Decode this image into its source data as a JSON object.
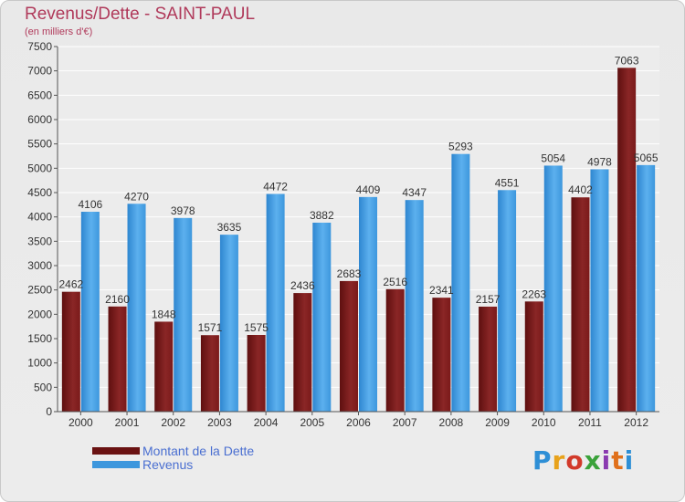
{
  "header": {
    "title": "Revenus/Dette - SAINT-PAUL",
    "subtitle": "(en milliers d'€)"
  },
  "legend": {
    "items": [
      {
        "label": "Montant de la Dette",
        "color": "#7a1a1a"
      },
      {
        "label": "Revenus",
        "color": "#3d97dd"
      }
    ]
  },
  "logo": {
    "text": "Proxiti"
  },
  "colors": {
    "debt": "#7a1a1a",
    "debt_light": "#9a3030",
    "revenue": "#3d97dd",
    "revenue_light": "#5cb0ee",
    "title": "#b03a5b",
    "legend_text": "#4a6fd1"
  },
  "chart_data": {
    "type": "bar",
    "title": "Revenus/Dette - SAINT-PAUL",
    "subtitle": "(en milliers d'€)",
    "categories": [
      "2000",
      "2001",
      "2002",
      "2003",
      "2004",
      "2005",
      "2006",
      "2007",
      "2008",
      "2009",
      "2010",
      "2011",
      "2012"
    ],
    "series": [
      {
        "name": "Montant de la Dette",
        "values": [
          2462,
          2160,
          1848,
          1571,
          1575,
          2436,
          2683,
          2516,
          2341,
          2157,
          2263,
          4402,
          7063
        ]
      },
      {
        "name": "Revenus",
        "values": [
          4106,
          4270,
          3978,
          3635,
          4472,
          3882,
          4409,
          4347,
          5293,
          4551,
          5054,
          4978,
          5065
        ]
      }
    ],
    "ylim": [
      0,
      7500
    ],
    "yticks": [
      0,
      500,
      1000,
      1500,
      2000,
      2500,
      3000,
      3500,
      4000,
      4500,
      5000,
      5500,
      6000,
      6500,
      7000,
      7500
    ],
    "grid": true,
    "legend_position": "bottom-left"
  }
}
